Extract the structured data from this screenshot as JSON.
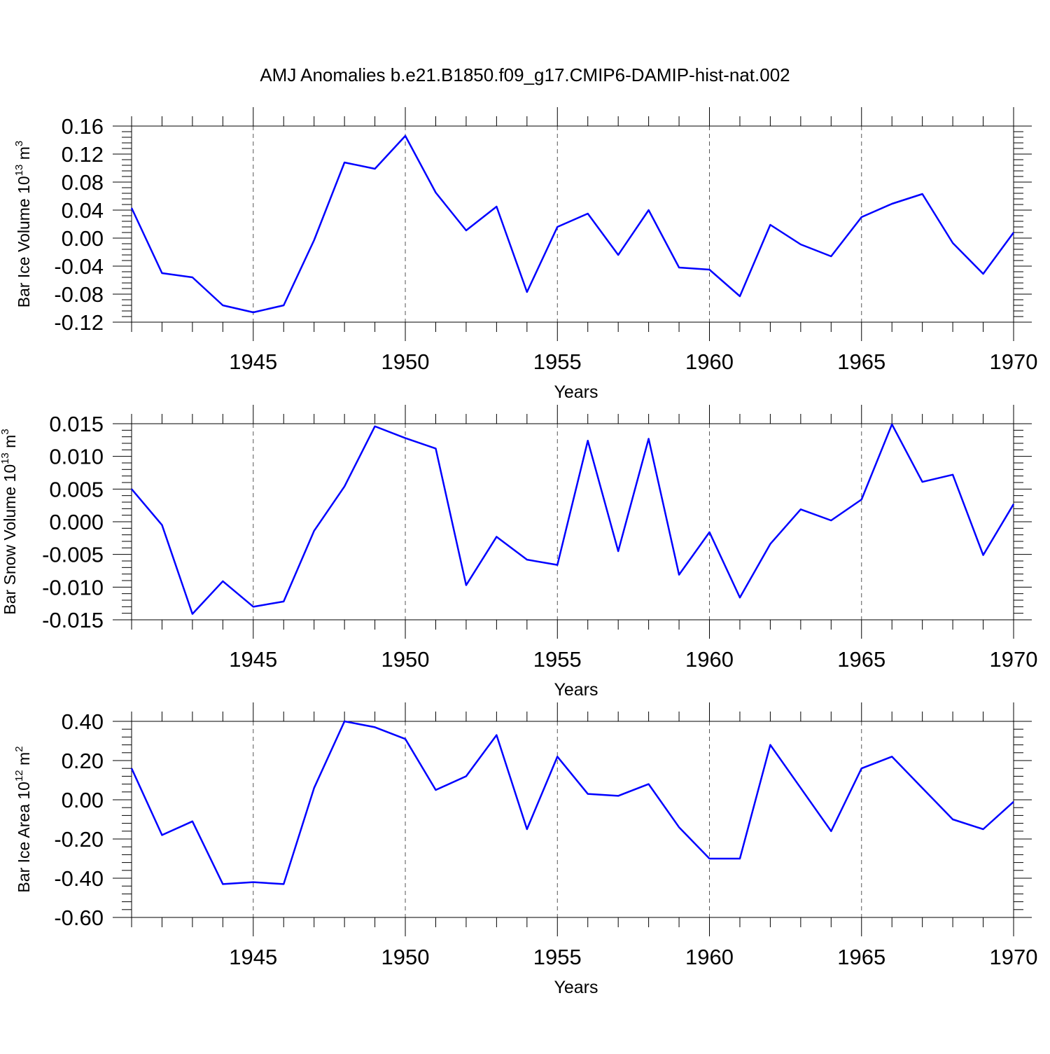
{
  "title": "AMJ Anomalies b.e21.B1850.f09_g17.CMIP6-DAMIP-hist-nat.002",
  "colors": {
    "line": "#0000ff",
    "axis": "#000000",
    "grid": "#555555"
  },
  "chart_data": [
    {
      "type": "line",
      "ylabel_main": "Bar Ice Volume 10",
      "ylabel_exp": "13",
      "ylabel_unit": " m",
      "ylabel_unit_exp": "3",
      "xlabel": "Years",
      "xlim": [
        1941,
        1970
      ],
      "ylim": [
        -0.12,
        0.16
      ],
      "yticks": [
        -0.12,
        -0.08,
        -0.04,
        0.0,
        0.04,
        0.08,
        0.12,
        0.16
      ],
      "ytick_labels": [
        "-0.12",
        "-0.08",
        "-0.04",
        "0.00",
        "0.04",
        "0.08",
        "0.12",
        "0.16"
      ],
      "xticks": [
        1945,
        1950,
        1955,
        1960,
        1965,
        1970
      ],
      "xtick_labels": [
        "1945",
        "1950",
        "1955",
        "1960",
        "1965",
        "1970"
      ],
      "grid": "vertical dashed at major x ticks",
      "x": [
        1941,
        1942,
        1943,
        1944,
        1945,
        1946,
        1947,
        1948,
        1949,
        1950,
        1951,
        1952,
        1953,
        1954,
        1955,
        1956,
        1957,
        1958,
        1959,
        1960,
        1961,
        1962,
        1963,
        1964,
        1965,
        1966,
        1967,
        1968,
        1969,
        1970
      ],
      "values": [
        0.043,
        -0.05,
        -0.056,
        -0.096,
        -0.106,
        -0.096,
        -0.003,
        0.108,
        0.099,
        0.146,
        0.065,
        0.011,
        0.045,
        -0.077,
        0.016,
        0.035,
        -0.024,
        0.04,
        -0.042,
        -0.045,
        -0.083,
        0.019,
        -0.009,
        -0.026,
        0.03,
        0.049,
        0.063,
        -0.007,
        -0.051,
        0.008
      ]
    },
    {
      "type": "line",
      "ylabel_main": "Bar Snow Volume 10",
      "ylabel_exp": "13",
      "ylabel_unit": " m",
      "ylabel_unit_exp": "3",
      "xlabel": "Years",
      "xlim": [
        1941,
        1970
      ],
      "ylim": [
        -0.015,
        0.015
      ],
      "yticks": [
        -0.015,
        -0.01,
        -0.005,
        0.0,
        0.005,
        0.01,
        0.015
      ],
      "ytick_labels": [
        "-0.015",
        "-0.010",
        "-0.005",
        "0.000",
        "0.005",
        "0.010",
        "0.015"
      ],
      "xticks": [
        1945,
        1950,
        1955,
        1960,
        1965,
        1970
      ],
      "xtick_labels": [
        "1945",
        "1950",
        "1955",
        "1960",
        "1965",
        "1970"
      ],
      "grid": "vertical dashed at major x ticks",
      "x": [
        1941,
        1942,
        1943,
        1944,
        1945,
        1946,
        1947,
        1948,
        1949,
        1950,
        1951,
        1952,
        1953,
        1954,
        1955,
        1956,
        1957,
        1958,
        1959,
        1960,
        1961,
        1962,
        1963,
        1964,
        1965,
        1966,
        1967,
        1968,
        1969,
        1970
      ],
      "values": [
        0.005,
        -0.0005,
        -0.0141,
        -0.0091,
        -0.013,
        -0.0122,
        -0.0014,
        0.0054,
        0.0146,
        0.0128,
        0.0112,
        -0.0097,
        -0.0023,
        -0.0058,
        -0.0066,
        0.0124,
        -0.0045,
        0.0127,
        -0.0081,
        -0.0016,
        -0.0116,
        -0.0034,
        0.0019,
        0.0002,
        0.0034,
        0.0149,
        0.0061,
        0.0072,
        -0.0051,
        0.0027
      ]
    },
    {
      "type": "line",
      "ylabel_main": "Bar Ice Area 10",
      "ylabel_exp": "12",
      "ylabel_unit": " m",
      "ylabel_unit_exp": "2",
      "xlabel": "Years",
      "xlim": [
        1941,
        1970
      ],
      "ylim": [
        -0.6,
        0.4
      ],
      "yticks": [
        -0.6,
        -0.4,
        -0.2,
        0.0,
        0.2,
        0.4
      ],
      "ytick_labels": [
        "-0.60",
        "-0.40",
        "-0.20",
        "0.00",
        "0.20",
        "0.40"
      ],
      "xticks": [
        1945,
        1950,
        1955,
        1960,
        1965,
        1970
      ],
      "xtick_labels": [
        "1945",
        "1950",
        "1955",
        "1960",
        "1965",
        "1970"
      ],
      "grid": "vertical dashed at major x ticks",
      "x": [
        1941,
        1942,
        1943,
        1944,
        1945,
        1946,
        1947,
        1948,
        1949,
        1950,
        1951,
        1952,
        1953,
        1954,
        1955,
        1956,
        1957,
        1958,
        1959,
        1960,
        1961,
        1962,
        1963,
        1964,
        1965,
        1966,
        1967,
        1968,
        1969,
        1970
      ],
      "values": [
        0.16,
        -0.18,
        -0.11,
        -0.43,
        -0.42,
        -0.43,
        0.06,
        0.4,
        0.37,
        0.31,
        0.05,
        0.12,
        0.33,
        -0.15,
        0.22,
        0.03,
        0.02,
        0.08,
        -0.14,
        -0.3,
        -0.3,
        0.28,
        0.06,
        -0.16,
        0.16,
        0.22,
        0.06,
        -0.1,
        -0.15,
        -0.01
      ]
    }
  ]
}
